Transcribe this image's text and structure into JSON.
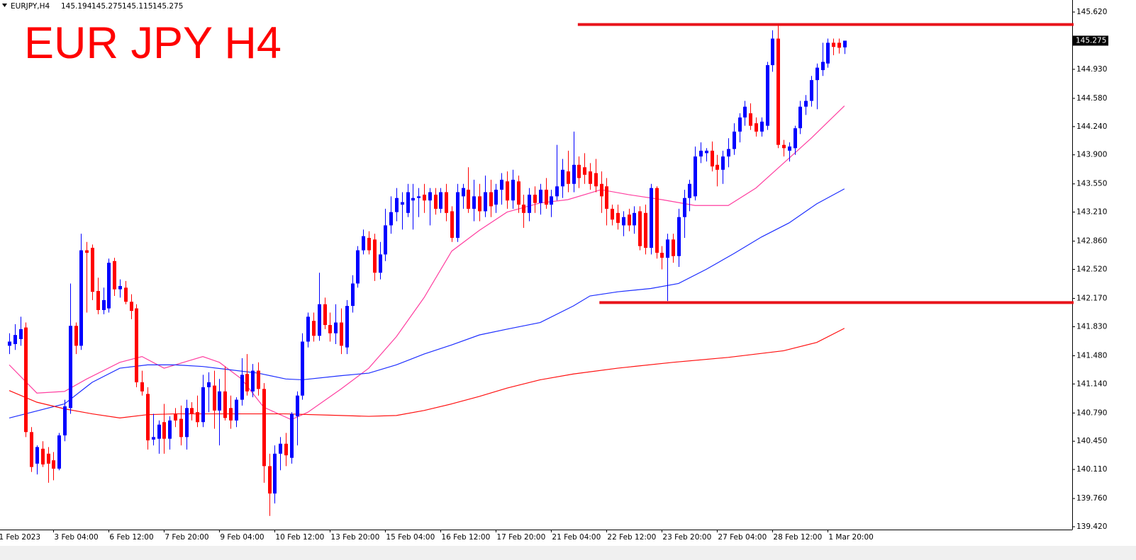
{
  "chart_data": {
    "type": "candlestick",
    "symbol": "EURJPY,H4",
    "title": "EUR JPY H4",
    "up_color": "#0000ff",
    "down_color": "#ff0000",
    "open": [
      141.6,
      141.62,
      141.68,
      141.82,
      140.56,
      140.18,
      140.36,
      140.3,
      140.22,
      140.12,
      140.52,
      140.85,
      141.84,
      141.6,
      142.75,
      142.78,
      142.26,
      142.03,
      142.05,
      142.62,
      142.28,
      142.3,
      142.13,
      142.05,
      141.16,
      141.02,
      140.47,
      140.48,
      140.68,
      140.48,
      140.78,
      140.72,
      140.5,
      140.85,
      140.8,
      140.68,
      141.1,
      141.12,
      140.82,
      141.05,
      140.85,
      140.7,
      140.95,
      141.26,
      141.05,
      141.3,
      141.08,
      140.15,
      139.82,
      140.3,
      140.42,
      140.25,
      140.75,
      141.0,
      141.65,
      141.9,
      141.72,
      142.1,
      141.85,
      141.75,
      141.88,
      141.58,
      142.08,
      142.35,
      142.75,
      142.9,
      142.88,
      142.48,
      142.7,
      143.05,
      143.21,
      143.3,
      143.2,
      143.35,
      143.38,
      143.42,
      143.35,
      143.42,
      143.25,
      143.45,
      143.22,
      142.9,
      143.4,
      143.48,
      143.25,
      143.4,
      143.22,
      143.45,
      143.3,
      143.48,
      143.58,
      143.35,
      143.58,
      143.3,
      143.2,
      143.42,
      143.32,
      143.48,
      143.3,
      143.4,
      143.52,
      143.7,
      143.55,
      143.78,
      143.75,
      143.7,
      143.68,
      143.55,
      143.52,
      143.25,
      143.2,
      143.05,
      143.18,
      143.05,
      143.22,
      143.2,
      142.78,
      143.5,
      142.72,
      142.66,
      142.88,
      142.68,
      143.15,
      143.38,
      143.4,
      143.88,
      143.92,
      143.95,
      143.78,
      143.72,
      143.88,
      143.97,
      144.18,
      144.35,
      144.4,
      144.28,
      144.18,
      144.25,
      144.98,
      145.3,
      144.02,
      143.95,
      143.98,
      144.22,
      144.48,
      144.55,
      144.8,
      144.92,
      145.0,
      145.25,
      145.25,
      145.194
    ],
    "high": [
      141.75,
      141.86,
      141.95,
      141.88,
      140.62,
      140.4,
      140.45,
      140.38,
      140.32,
      140.55,
      140.95,
      142.35,
      141.88,
      142.95,
      142.85,
      142.82,
      142.42,
      142.3,
      142.65,
      142.66,
      142.4,
      142.38,
      142.22,
      142.1,
      141.3,
      141.1,
      140.78,
      140.7,
      140.9,
      140.75,
      140.85,
      140.88,
      140.95,
      140.92,
      141.0,
      141.25,
      141.28,
      141.3,
      141.2,
      141.35,
      141.0,
      140.98,
      141.45,
      141.5,
      141.38,
      141.4,
      141.15,
      140.3,
      140.4,
      140.5,
      140.55,
      140.8,
      141.05,
      141.75,
      142.0,
      142.0,
      142.48,
      142.18,
      142.0,
      142.1,
      142.05,
      142.15,
      142.45,
      142.8,
      143.0,
      142.98,
      142.95,
      142.85,
      143.25,
      143.4,
      143.5,
      143.45,
      143.55,
      143.55,
      143.5,
      143.55,
      143.5,
      143.5,
      143.5,
      143.55,
      143.28,
      143.55,
      143.55,
      143.75,
      143.6,
      143.55,
      143.65,
      143.6,
      143.55,
      143.68,
      143.7,
      143.72,
      143.65,
      143.42,
      143.5,
      143.52,
      143.55,
      143.62,
      143.48,
      144.02,
      143.85,
      143.95,
      144.18,
      143.88,
      143.92,
      143.8,
      143.85,
      143.7,
      143.62,
      143.3,
      143.3,
      143.22,
      143.25,
      143.28,
      143.28,
      143.3,
      143.55,
      143.52,
      142.8,
      142.95,
      142.95,
      143.25,
      143.48,
      143.6,
      144.0,
      144.05,
      143.98,
      144.06,
      143.9,
      143.95,
      144.1,
      144.28,
      144.4,
      144.55,
      144.52,
      144.35,
      144.35,
      145.02,
      145.4,
      145.47,
      144.08,
      144.05,
      144.25,
      144.55,
      144.62,
      144.85,
      145.0,
      145.25,
      145.3,
      145.3,
      145.3,
      145.275
    ],
    "low": [
      141.5,
      141.55,
      141.6,
      140.5,
      140.08,
      140.05,
      140.14,
      139.95,
      139.98,
      140.1,
      140.45,
      140.78,
      141.5,
      141.55,
      142.0,
      142.15,
      141.98,
      141.98,
      142.0,
      142.2,
      142.18,
      142.1,
      141.92,
      141.1,
      141.0,
      140.35,
      140.4,
      140.3,
      140.3,
      140.35,
      140.62,
      140.4,
      140.35,
      140.7,
      140.62,
      140.62,
      140.8,
      140.6,
      140.4,
      140.7,
      140.6,
      140.62,
      140.88,
      141.0,
      140.98,
      141.0,
      139.95,
      139.55,
      139.7,
      140.1,
      140.15,
      140.18,
      140.4,
      140.95,
      141.58,
      141.65,
      141.66,
      141.8,
      141.65,
      141.62,
      141.5,
      141.5,
      142.0,
      142.3,
      142.7,
      142.7,
      142.38,
      142.4,
      142.62,
      142.95,
      143.1,
      143.0,
      143.15,
      143.0,
      143.15,
      143.2,
      143.05,
      143.18,
      143.2,
      143.1,
      142.85,
      142.85,
      143.25,
      143.2,
      143.1,
      143.1,
      143.15,
      143.15,
      143.2,
      143.3,
      143.25,
      143.25,
      143.2,
      143.02,
      143.1,
      143.2,
      143.18,
      143.25,
      143.15,
      143.35,
      143.38,
      143.45,
      143.45,
      143.5,
      143.55,
      143.48,
      143.45,
      143.2,
      143.05,
      143.05,
      143.0,
      142.92,
      142.98,
      142.95,
      142.75,
      142.7,
      142.7,
      142.65,
      142.52,
      142.14,
      142.6,
      142.55,
      142.9,
      143.22,
      143.35,
      143.8,
      143.82,
      143.7,
      143.52,
      143.55,
      143.75,
      143.9,
      144.05,
      144.25,
      144.2,
      144.12,
      144.12,
      144.2,
      144.9,
      143.98,
      143.88,
      143.82,
      143.9,
      144.15,
      144.38,
      144.48,
      144.45,
      144.85,
      144.95,
      145.1,
      145.12,
      145.115
    ],
    "close": [
      141.65,
      141.73,
      141.8,
      140.56,
      140.14,
      140.38,
      140.17,
      140.18,
      140.12,
      140.52,
      140.87,
      141.84,
      141.6,
      142.75,
      142.72,
      142.25,
      142.03,
      142.15,
      142.6,
      142.28,
      142.32,
      142.13,
      142.02,
      141.16,
      141.05,
      140.46,
      140.5,
      140.65,
      140.48,
      140.7,
      140.7,
      140.5,
      140.85,
      140.78,
      140.68,
      141.1,
      141.16,
      140.82,
      141.05,
      140.73,
      140.7,
      140.95,
      141.25,
      141.05,
      141.3,
      141.08,
      140.15,
      139.82,
      140.3,
      140.42,
      140.28,
      140.78,
      141.0,
      141.65,
      141.95,
      141.72,
      142.1,
      141.85,
      141.75,
      141.88,
      141.6,
      142.08,
      142.35,
      142.75,
      142.92,
      142.75,
      142.48,
      142.7,
      143.05,
      143.21,
      143.38,
      143.33,
      143.45,
      143.38,
      143.4,
      143.35,
      143.45,
      143.25,
      143.45,
      143.2,
      142.9,
      143.45,
      143.5,
      143.25,
      143.4,
      143.22,
      143.45,
      143.28,
      143.48,
      143.6,
      143.35,
      143.6,
      143.3,
      143.2,
      143.42,
      143.32,
      143.48,
      143.3,
      143.4,
      143.52,
      143.72,
      143.55,
      143.78,
      143.62,
      143.66,
      143.55,
      143.52,
      143.4,
      143.25,
      143.12,
      143.08,
      143.15,
      143.05,
      143.2,
      142.8,
      142.78,
      143.5,
      142.72,
      142.66,
      142.88,
      142.68,
      143.15,
      143.38,
      143.55,
      143.88,
      143.95,
      143.95,
      143.76,
      143.72,
      143.88,
      143.97,
      144.18,
      144.35,
      144.48,
      144.25,
      144.18,
      144.3,
      144.98,
      145.3,
      144.02,
      143.98,
      144.0,
      144.22,
      144.48,
      144.55,
      144.8,
      144.95,
      145.02,
      145.25,
      145.2,
      145.19,
      145.275
    ],
    "series": [
      {
        "color": "#ff3fa0",
        "x": [
          0,
          5,
          10,
          14,
          20,
          24,
          28,
          35,
          38,
          42,
          46,
          51,
          54,
          60,
          65,
          70,
          75,
          80,
          85,
          90,
          96,
          101,
          107,
          112,
          118,
          124,
          130,
          135,
          140,
          145,
          151
        ],
        "values": [
          141.37,
          141.03,
          141.05,
          141.2,
          141.4,
          141.47,
          141.33,
          141.47,
          141.4,
          141.2,
          140.86,
          140.71,
          140.8,
          141.08,
          141.33,
          141.71,
          142.18,
          142.74,
          142.99,
          143.21,
          143.32,
          143.36,
          143.48,
          143.42,
          143.36,
          143.29,
          143.29,
          143.5,
          143.8,
          144.1,
          144.49
        ]
      },
      {
        "color": "#1e2fff",
        "x": [
          0,
          10,
          15,
          20,
          25,
          30,
          35,
          40,
          45,
          50,
          53,
          60,
          65,
          70,
          75,
          80,
          85,
          90,
          96,
          102,
          105,
          110,
          116,
          121,
          126,
          131,
          136,
          141,
          146,
          151
        ],
        "values": [
          140.73,
          140.9,
          141.16,
          141.33,
          141.37,
          141.37,
          141.35,
          141.31,
          141.27,
          141.2,
          141.19,
          141.24,
          141.27,
          141.37,
          141.5,
          141.61,
          141.73,
          141.8,
          141.88,
          142.08,
          142.2,
          142.25,
          142.29,
          142.35,
          142.52,
          142.71,
          142.91,
          143.08,
          143.31,
          143.49
        ]
      },
      {
        "color": "#ff1010",
        "x": [
          0,
          5,
          10,
          15,
          20,
          25,
          30,
          40,
          50,
          60,
          65,
          70,
          75,
          80,
          85,
          90,
          96,
          102,
          110,
          120,
          130,
          140,
          146,
          151
        ],
        "values": [
          141.06,
          140.92,
          140.84,
          140.78,
          140.73,
          140.77,
          140.78,
          140.78,
          140.78,
          140.76,
          140.75,
          140.76,
          140.82,
          140.9,
          140.99,
          141.09,
          141.19,
          141.26,
          141.33,
          141.4,
          141.46,
          141.54,
          141.64,
          141.81
        ]
      }
    ],
    "levels": [
      {
        "value": 145.47,
        "from": 102.8,
        "color": "#e8141b"
      },
      {
        "value": 142.12,
        "from": 106.7,
        "color": "#e8141b"
      }
    ],
    "xlim": [
      -1.67,
      192.18
    ],
    "ylim": [
      139.386,
      145.765
    ],
    "xticks": [
      {
        "value": -2,
        "label": "1 Feb 2023"
      },
      {
        "value": 8,
        "label": "3 Feb 04:00"
      },
      {
        "value": 18,
        "label": "6 Feb 12:00"
      },
      {
        "value": 28,
        "label": "7 Feb 20:00"
      },
      {
        "value": 38,
        "label": "9 Feb 04:00"
      },
      {
        "value": 48,
        "label": "10 Feb 12:00"
      },
      {
        "value": 58,
        "label": "13 Feb 20:00"
      },
      {
        "value": 68,
        "label": "15 Feb 04:00"
      },
      {
        "value": 78,
        "label": "16 Feb 12:00"
      },
      {
        "value": 88,
        "label": "17 Feb 20:00"
      },
      {
        "value": 98,
        "label": "21 Feb 04:00"
      },
      {
        "value": 108,
        "label": "22 Feb 12:00"
      },
      {
        "value": 118,
        "label": "23 Feb 20:00"
      },
      {
        "value": 128,
        "label": "27 Feb 04:00"
      },
      {
        "value": 138,
        "label": "28 Feb 12:00"
      },
      {
        "value": 148,
        "label": "1 Mar 20:00"
      }
    ],
    "yticks": [
      {
        "value": 145.62,
        "label": "145.620"
      },
      {
        "value": 144.93,
        "label": "144.930"
      },
      {
        "value": 144.58,
        "label": "144.580"
      },
      {
        "value": 144.24,
        "label": "144.240"
      },
      {
        "value": 143.9,
        "label": "143.900"
      },
      {
        "value": 143.55,
        "label": "143.550"
      },
      {
        "value": 143.21,
        "label": "143.210"
      },
      {
        "value": 142.86,
        "label": "142.860"
      },
      {
        "value": 142.52,
        "label": "142.520"
      },
      {
        "value": 142.17,
        "label": "142.170"
      },
      {
        "value": 141.83,
        "label": "141.830"
      },
      {
        "value": 141.48,
        "label": "141.480"
      },
      {
        "value": 141.14,
        "label": "141.140"
      },
      {
        "value": 140.79,
        "label": "140.790"
      },
      {
        "value": 140.45,
        "label": "140.450"
      },
      {
        "value": 140.11,
        "label": "140.110"
      },
      {
        "value": 139.76,
        "label": "139.760"
      },
      {
        "value": 139.42,
        "label": "139.420"
      }
    ]
  }
}
